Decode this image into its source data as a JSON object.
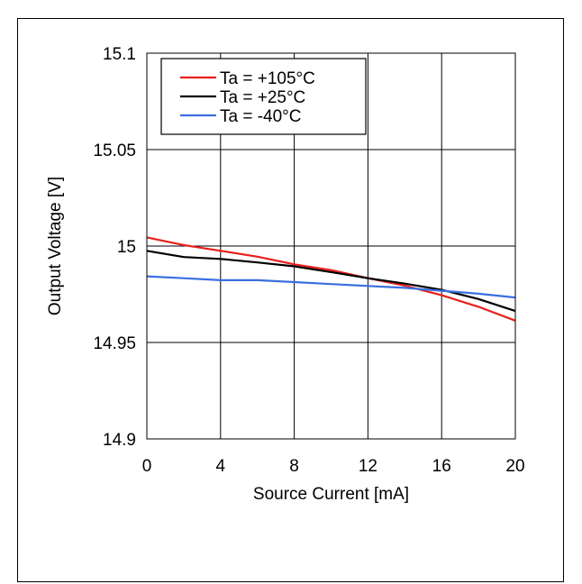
{
  "chart_data": {
    "type": "line",
    "title": "",
    "xlabel": "Source Current [mA]",
    "ylabel": "Output Voltage [V]",
    "xlim": [
      0,
      20
    ],
    "ylim": [
      14.9,
      15.1
    ],
    "xticks": [
      "0",
      "4",
      "8",
      "12",
      "16",
      "20"
    ],
    "yticks": [
      "14.9",
      "14.95",
      "15",
      "15.05",
      "15.1"
    ],
    "grid": true,
    "legend_position": "top-left",
    "series": [
      {
        "name": "Ta = +105°C",
        "color": "#e8201c",
        "x": [
          0,
          2,
          4,
          6,
          8,
          10,
          12,
          14,
          16,
          18,
          20
        ],
        "y": [
          15.0045,
          15.0005,
          14.9975,
          14.9945,
          14.9905,
          14.9875,
          14.9833,
          14.9795,
          14.9745,
          14.9685,
          14.9613
        ]
      },
      {
        "name": "Ta = +25°C",
        "color": "#000000",
        "x": [
          0,
          2,
          4,
          6,
          8,
          10,
          12,
          14,
          16,
          18,
          20
        ],
        "y": [
          14.9975,
          14.9943,
          14.9933,
          14.9915,
          14.9895,
          14.9865,
          14.9833,
          14.9805,
          14.9773,
          14.9725,
          14.9663
        ]
      },
      {
        "name": "Ta = -40°C",
        "color": "#3a6fe0",
        "x": [
          0,
          2,
          4,
          6,
          8,
          10,
          12,
          14,
          16,
          18,
          20
        ],
        "y": [
          14.9843,
          14.9833,
          14.9823,
          14.9823,
          14.9813,
          14.9803,
          14.9793,
          14.9783,
          14.9768,
          14.9753,
          14.9733
        ]
      }
    ]
  }
}
